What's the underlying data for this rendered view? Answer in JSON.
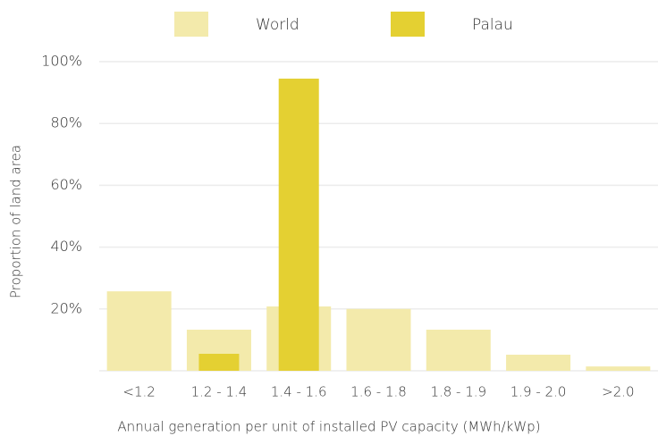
{
  "chart_data": {
    "type": "bar",
    "x_label": "Annual generation per unit of installed PV capacity (MWh/kWp)",
    "y_label": "Proportion of land area",
    "categories": [
      "<1.2",
      "1.2 - 1.4",
      "1.4 - 1.6",
      "1.6 - 1.8",
      "1.8 - 1.9",
      "1.9 - 2.0",
      ">2.0"
    ],
    "series": [
      {
        "name": "World",
        "color": "#f3eaab",
        "values": [
          25.7,
          13.3,
          20.8,
          20,
          13.3,
          5.2,
          1.4
        ]
      },
      {
        "name": "Palau",
        "color": "#e4d032",
        "values": [
          0,
          5.5,
          94.5,
          0,
          0,
          0,
          0
        ]
      }
    ],
    "ylim": [
      0,
      100
    ],
    "yticks": [
      {
        "value": 20,
        "label": "20%"
      },
      {
        "value": 40,
        "label": "40%"
      },
      {
        "value": 60,
        "label": "60%"
      },
      {
        "value": 80,
        "label": "80%"
      },
      {
        "value": 100,
        "label": "100%"
      }
    ],
    "grid": true,
    "legend": "top"
  }
}
